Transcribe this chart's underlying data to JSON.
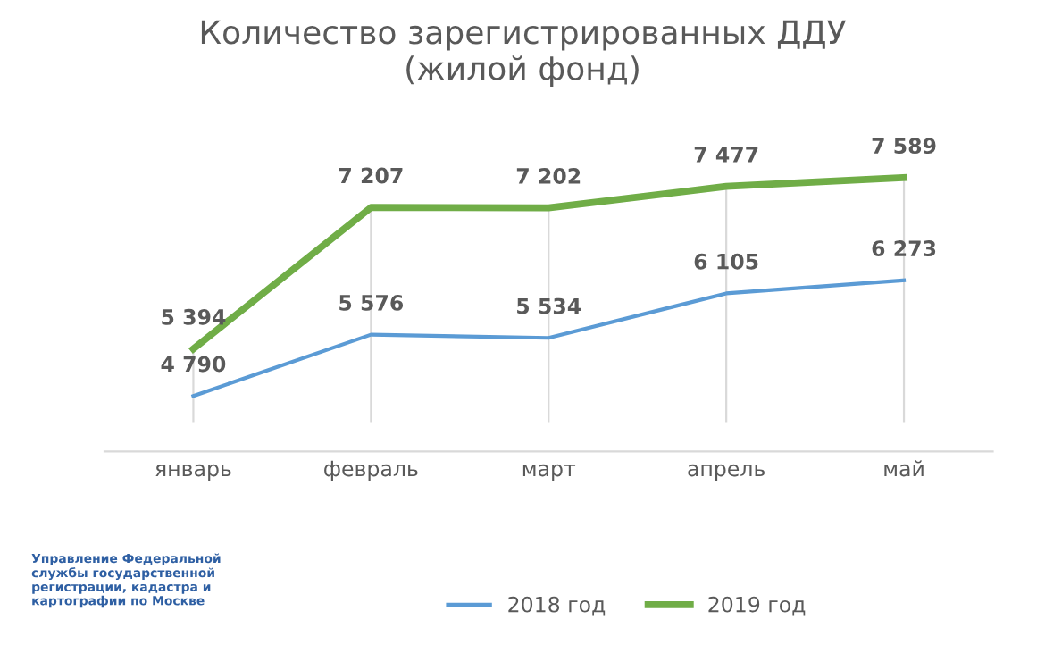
{
  "chart_data": {
    "type": "line",
    "title": "Количество зарегистрированных ДДУ\n(жилой фонд)",
    "categories": [
      "январь",
      "февраль",
      "март",
      "апрель",
      "май"
    ],
    "series": [
      {
        "name": "2018 год",
        "color": "#5b9bd5",
        "values": [
          4790,
          5576,
          5534,
          6105,
          6273
        ]
      },
      {
        "name": "2019 год",
        "color": "#70ad47",
        "values": [
          5394,
          7207,
          7202,
          7477,
          7589
        ]
      }
    ],
    "tick_labels": "x",
    "data_labels": true,
    "grid": "x",
    "legend": "bottom",
    "marker": "none",
    "annotations": [
      "Управление Федеральной\nслужбы государственной\nрегистрации, кадастра и\nкартографии по Москве"
    ]
  }
}
